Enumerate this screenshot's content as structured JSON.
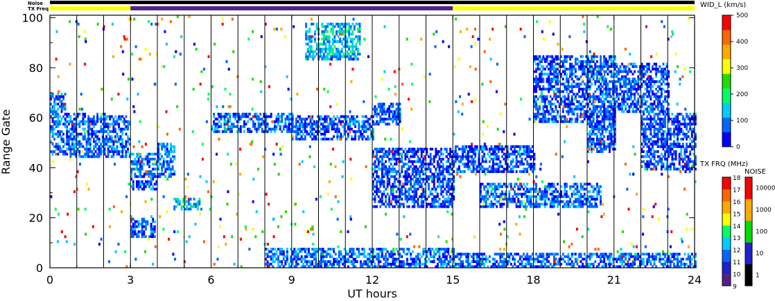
{
  "chart_data": {
    "type": "heatmap",
    "xlabel": "UT hours",
    "ylabel": "Range Gate",
    "xlim": [
      0,
      24
    ],
    "ylim": [
      0,
      101
    ],
    "x_ticks": [
      "0",
      "3",
      "6",
      "9",
      "12",
      "15",
      "18",
      "21",
      "24"
    ],
    "y_ticks": [
      "0",
      "20",
      "40",
      "60",
      "80",
      "100"
    ],
    "status_bar_labels": {
      "noise": "Noise",
      "txfreq": "TX Freq"
    },
    "status_segments": [
      {
        "from": 0,
        "to": 3,
        "color": "#ffff00"
      },
      {
        "from": 3,
        "to": 15,
        "color": "#55208a"
      },
      {
        "from": 15,
        "to": 24,
        "color": "#ffff00"
      }
    ],
    "scan_boundaries_ut": [
      1.0,
      2.0,
      3.0,
      4.0,
      5.0,
      6.0,
      7.0,
      8.0,
      9.0,
      10.0,
      11.0,
      12.0,
      13.0,
      14.0,
      15.0,
      16.0,
      17.0,
      18.0,
      19.0,
      20.0,
      21.0,
      22.0,
      23.0
    ],
    "echo_regions": [
      {
        "x0": 0.0,
        "x1": 0.6,
        "y0": 45,
        "y1": 70,
        "level": 90
      },
      {
        "x0": 0.6,
        "x1": 2.0,
        "y0": 44,
        "y1": 62,
        "level": 80
      },
      {
        "x0": 2.0,
        "x1": 3.0,
        "y0": 44,
        "y1": 61,
        "level": 80
      },
      {
        "x0": 3.0,
        "x1": 4.0,
        "y0": 31,
        "y1": 46,
        "level": 80
      },
      {
        "x0": 4.0,
        "x1": 4.6,
        "y0": 36,
        "y1": 50,
        "level": 90
      },
      {
        "x0": 3.0,
        "x1": 3.9,
        "y0": 12,
        "y1": 20,
        "level": 70
      },
      {
        "x0": 4.6,
        "x1": 5.6,
        "y0": 23,
        "y1": 28,
        "level": 120
      },
      {
        "x0": 6.0,
        "x1": 9.0,
        "y0": 54,
        "y1": 62,
        "level": 70
      },
      {
        "x0": 9.0,
        "x1": 12.0,
        "y0": 51,
        "y1": 61,
        "level": 70
      },
      {
        "x0": 12.0,
        "x1": 13.0,
        "y0": 57,
        "y1": 66,
        "level": 70
      },
      {
        "x0": 9.5,
        "x1": 11.5,
        "y0": 83,
        "y1": 98,
        "level": 130
      },
      {
        "x0": 12.0,
        "x1": 15.0,
        "y0": 24,
        "y1": 48,
        "level": 60
      },
      {
        "x0": 15.0,
        "x1": 18.0,
        "y0": 38,
        "y1": 49,
        "level": 70
      },
      {
        "x0": 16.0,
        "x1": 20.5,
        "y0": 24,
        "y1": 34,
        "level": 80
      },
      {
        "x0": 18.0,
        "x1": 21.0,
        "y0": 58,
        "y1": 85,
        "level": 70
      },
      {
        "x0": 20.0,
        "x1": 21.0,
        "y0": 46,
        "y1": 62,
        "level": 70
      },
      {
        "x0": 21.0,
        "x1": 23.0,
        "y0": 62,
        "y1": 82,
        "level": 70
      },
      {
        "x0": 22.0,
        "x1": 24.0,
        "y0": 39,
        "y1": 62,
        "level": 60
      },
      {
        "x0": 8.0,
        "x1": 15.0,
        "y0": 0,
        "y1": 8,
        "level": 80
      },
      {
        "x0": 15.0,
        "x1": 24.0,
        "y0": 0,
        "y1": 6,
        "level": 80
      }
    ],
    "colorbars": {
      "width": {
        "title": "WID_L (km/s)",
        "ticks": [
          "500",
          "400",
          "300",
          "200",
          "100",
          "0"
        ]
      },
      "txfreq": {
        "title": "TX FRQ (MHz)",
        "ticks": [
          "18",
          "17",
          "16",
          "15",
          "14",
          "13",
          "12",
          "11",
          "10",
          "9"
        ]
      },
      "noise": {
        "title": "NOISE",
        "ticks": [
          "10000",
          "1000",
          "100",
          "10",
          "1"
        ]
      }
    },
    "colors": {
      "scale": [
        "#0000ff",
        "#0066ff",
        "#00ccff",
        "#00ff66",
        "#22dd00",
        "#ffff00",
        "#ffaa00",
        "#ff6600",
        "#ff0000"
      ],
      "txfreq_scale": [
        "#000000",
        "#55208a",
        "#2020cc",
        "#0066ff",
        "#00ccff",
        "#00ff66",
        "#ffff00",
        "#ffaa00",
        "#ff6600",
        "#ff0000"
      ],
      "noise_scale": [
        "#000000",
        "#2020cc",
        "#00dd00",
        "#ffaa00",
        "#ff0000"
      ]
    }
  }
}
